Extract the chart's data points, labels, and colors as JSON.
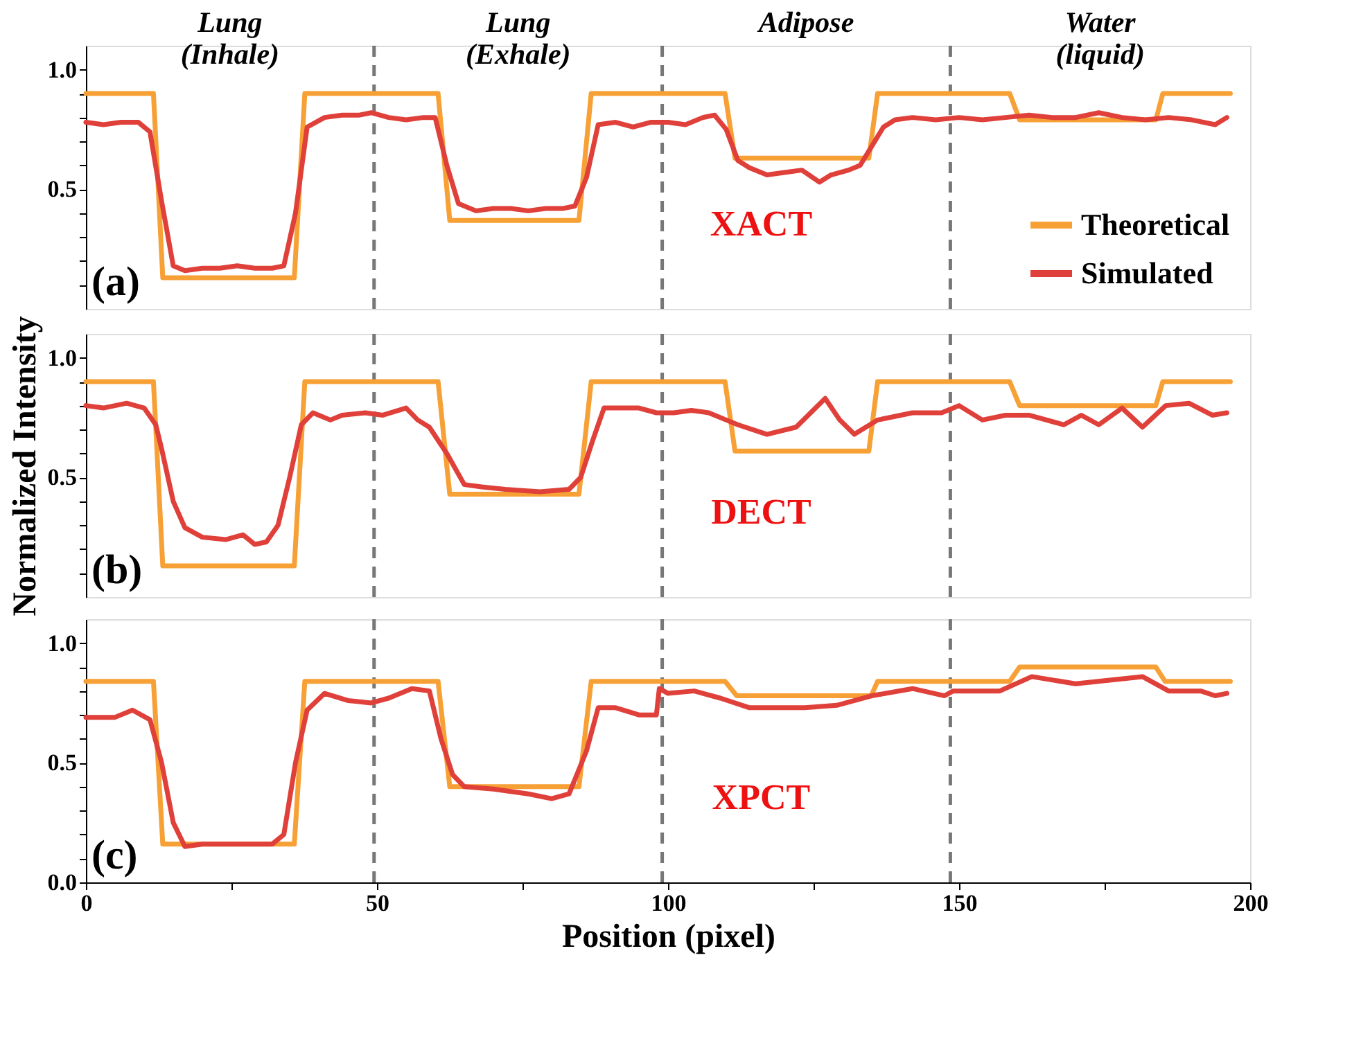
{
  "chart_data": [
    {
      "type": "line",
      "xlim": [
        0,
        200
      ],
      "ylim": [
        0,
        1.1
      ],
      "yticks": [
        {
          "value": 0.1,
          "label": null
        },
        {
          "value": 0.2,
          "label": null
        },
        {
          "value": 0.3,
          "label": null
        },
        {
          "value": 0.4,
          "label": null
        },
        {
          "value": 0.5,
          "label": "0.5"
        },
        {
          "value": 0.6,
          "label": null
        },
        {
          "value": 0.7,
          "label": null
        },
        {
          "value": 0.8,
          "label": null
        },
        {
          "value": 0.9,
          "label": null
        },
        {
          "value": 1,
          "label": "1.0"
        }
      ],
      "tick_labels": "y",
      "grid": false,
      "legend": "bottom right",
      "marker": "none",
      "line_style": "solid",
      "annotations": [
        "(a)",
        "XACT",
        "Lung\n(Inhale)",
        "Lung\n(Exhale)",
        "Adipose",
        "Water\n(liquid)"
      ],
      "ref_lines": [
        {
          "axis": "x",
          "value": 49.5,
          "color": "#777777",
          "line_style": "dashed"
        },
        {
          "axis": "x",
          "value": 99,
          "color": "#777777",
          "line_style": "dashed"
        },
        {
          "axis": "x",
          "value": 148.5,
          "color": "#777777",
          "line_style": "dashed"
        }
      ],
      "series": [
        {
          "name": "Theoretical",
          "color": "#f7a035",
          "x": [
            0,
            11.6,
            13.2,
            35.8,
            37.6,
            60.5,
            62.5,
            84.7,
            86.8,
            109.8,
            111.5,
            134.5,
            136,
            158.7,
            160.4,
            183.8,
            185,
            196.6
          ],
          "values": [
            0.9,
            0.9,
            0.13,
            0.13,
            0.9,
            0.9,
            0.37,
            0.37,
            0.9,
            0.9,
            0.63,
            0.63,
            0.9,
            0.9,
            0.79,
            0.79,
            0.9,
            0.9
          ]
        },
        {
          "name": "Simulated",
          "color": "#e0403a",
          "x": [
            0,
            3,
            6,
            9,
            11,
            13,
            15,
            17,
            20,
            23,
            26,
            29,
            32,
            34,
            36,
            38,
            41,
            44,
            47,
            49,
            52,
            55,
            58,
            60,
            62,
            64,
            67,
            70,
            73,
            76,
            79,
            82,
            84,
            86,
            88,
            91,
            94,
            97,
            100,
            103,
            106,
            108,
            110,
            112,
            114,
            117,
            120,
            123,
            126,
            128,
            131,
            133,
            135,
            137,
            139,
            142,
            146,
            150,
            154,
            158,
            162,
            166,
            170,
            174,
            178,
            182,
            186,
            190,
            194,
            196
          ],
          "values": [
            0.78,
            0.77,
            0.78,
            0.78,
            0.74,
            0.45,
            0.18,
            0.16,
            0.17,
            0.17,
            0.18,
            0.17,
            0.17,
            0.18,
            0.4,
            0.76,
            0.8,
            0.81,
            0.81,
            0.82,
            0.8,
            0.79,
            0.8,
            0.8,
            0.6,
            0.44,
            0.41,
            0.42,
            0.42,
            0.41,
            0.42,
            0.42,
            0.43,
            0.55,
            0.77,
            0.78,
            0.76,
            0.78,
            0.78,
            0.77,
            0.8,
            0.81,
            0.75,
            0.62,
            0.59,
            0.56,
            0.57,
            0.58,
            0.53,
            0.56,
            0.58,
            0.6,
            0.68,
            0.76,
            0.79,
            0.8,
            0.79,
            0.8,
            0.79,
            0.8,
            0.81,
            0.8,
            0.8,
            0.82,
            0.8,
            0.79,
            0.8,
            0.79,
            0.77,
            0.8
          ]
        }
      ]
    },
    {
      "type": "line",
      "xlim": [
        0,
        200
      ],
      "ylim": [
        0,
        1.1
      ],
      "yticks": [
        {
          "value": 0.1,
          "label": null
        },
        {
          "value": 0.2,
          "label": null
        },
        {
          "value": 0.3,
          "label": null
        },
        {
          "value": 0.4,
          "label": null
        },
        {
          "value": 0.5,
          "label": "0.5"
        },
        {
          "value": 0.6,
          "label": null
        },
        {
          "value": 0.7,
          "label": null
        },
        {
          "value": 0.8,
          "label": null
        },
        {
          "value": 0.9,
          "label": null
        },
        {
          "value": 1,
          "label": "1.0"
        }
      ],
      "tick_labels": "y",
      "grid": false,
      "marker": "none",
      "line_style": "solid",
      "ylabel": "Normalized Intensity",
      "annotations": [
        "(b)",
        "DECT"
      ],
      "ref_lines": [
        {
          "axis": "x",
          "value": 49.5,
          "color": "#777777",
          "line_style": "dashed"
        },
        {
          "axis": "x",
          "value": 99,
          "color": "#777777",
          "line_style": "dashed"
        },
        {
          "axis": "x",
          "value": 148.5,
          "color": "#777777",
          "line_style": "dashed"
        }
      ],
      "series": [
        {
          "color": "#f7a035",
          "x": [
            0,
            11.6,
            13.2,
            35.8,
            37.6,
            60.5,
            62.5,
            84.7,
            86.8,
            109.8,
            111.5,
            134.5,
            136,
            158.7,
            160.4,
            183.8,
            185,
            196.6
          ],
          "values": [
            0.9,
            0.9,
            0.13,
            0.13,
            0.9,
            0.9,
            0.43,
            0.43,
            0.9,
            0.9,
            0.61,
            0.61,
            0.9,
            0.9,
            0.8,
            0.8,
            0.9,
            0.9
          ]
        },
        {
          "color": "#e0403a",
          "x": [
            0,
            3,
            7,
            10,
            12,
            13,
            15,
            17,
            20,
            24,
            27,
            29,
            31,
            33,
            35,
            37,
            39,
            42,
            44,
            48,
            51,
            55,
            57,
            59,
            62,
            65,
            68,
            72,
            78,
            83,
            85,
            87,
            89,
            95,
            98,
            101,
            104,
            107,
            110,
            112,
            117,
            122,
            127,
            129.5,
            132,
            136,
            142,
            147,
            150,
            154,
            158,
            162,
            168,
            171,
            174,
            178,
            181.5,
            185.5,
            189.5,
            193.5,
            196
          ],
          "values": [
            0.8,
            0.79,
            0.81,
            0.79,
            0.72,
            0.62,
            0.4,
            0.29,
            0.25,
            0.24,
            0.26,
            0.22,
            0.23,
            0.3,
            0.5,
            0.72,
            0.77,
            0.74,
            0.76,
            0.77,
            0.76,
            0.79,
            0.74,
            0.71,
            0.6,
            0.47,
            0.46,
            0.45,
            0.44,
            0.45,
            0.5,
            0.65,
            0.79,
            0.79,
            0.77,
            0.77,
            0.78,
            0.77,
            0.74,
            0.72,
            0.68,
            0.71,
            0.83,
            0.74,
            0.68,
            0.74,
            0.77,
            0.77,
            0.8,
            0.74,
            0.76,
            0.76,
            0.72,
            0.76,
            0.72,
            0.79,
            0.71,
            0.8,
            0.81,
            0.76,
            0.77
          ]
        }
      ]
    },
    {
      "type": "line",
      "xlim": [
        0,
        200
      ],
      "ylim": [
        0,
        1.1
      ],
      "xlabel": "Position (pixel)",
      "xticks": [
        0,
        {
          "value": 25,
          "label": null
        },
        50,
        {
          "value": 75,
          "label": null
        },
        100,
        {
          "value": 125,
          "label": null
        },
        150,
        {
          "value": 175,
          "label": null
        },
        200
      ],
      "yticks": [
        {
          "value": 0,
          "label": "0.0"
        },
        {
          "value": 0.1,
          "label": null
        },
        {
          "value": 0.2,
          "label": null
        },
        {
          "value": 0.3,
          "label": null
        },
        {
          "value": 0.4,
          "label": null
        },
        {
          "value": 0.5,
          "label": "0.5"
        },
        {
          "value": 0.6,
          "label": null
        },
        {
          "value": 0.7,
          "label": null
        },
        {
          "value": 0.8,
          "label": null
        },
        {
          "value": 0.9,
          "label": null
        },
        {
          "value": 1,
          "label": "1.0"
        }
      ],
      "grid": false,
      "marker": "none",
      "line_style": "solid",
      "annotations": [
        "(c)",
        "XPCT"
      ],
      "ref_lines": [
        {
          "axis": "x",
          "value": 49.5,
          "color": "#777777",
          "line_style": "dashed"
        },
        {
          "axis": "x",
          "value": 99,
          "color": "#777777",
          "line_style": "dashed"
        },
        {
          "axis": "x",
          "value": 148.5,
          "color": "#777777",
          "line_style": "dashed"
        }
      ],
      "series": [
        {
          "color": "#f7a035",
          "x": [
            0,
            11.6,
            13.2,
            35.8,
            37.6,
            60.5,
            62.5,
            84.7,
            86.8,
            109.8,
            111.8,
            134.9,
            136,
            158.7,
            160.4,
            183.8,
            185.4,
            196.6
          ],
          "values": [
            0.84,
            0.84,
            0.16,
            0.16,
            0.84,
            0.84,
            0.4,
            0.4,
            0.84,
            0.84,
            0.78,
            0.78,
            0.84,
            0.84,
            0.9,
            0.9,
            0.84,
            0.84
          ]
        },
        {
          "color": "#e0403a",
          "x": [
            0,
            5,
            8,
            11,
            13,
            15,
            17,
            20,
            25,
            32,
            34,
            36,
            38,
            41,
            45,
            49,
            52,
            56,
            59,
            61,
            63,
            65,
            70,
            76,
            80,
            83,
            86,
            88,
            91,
            95,
            98,
            98.5,
            100,
            104.5,
            109,
            114,
            123.5,
            129,
            135,
            142,
            147.5,
            149,
            157,
            162.5,
            170,
            181.5,
            186,
            191.5,
            194,
            196
          ],
          "values": [
            0.69,
            0.69,
            0.72,
            0.68,
            0.5,
            0.25,
            0.15,
            0.16,
            0.16,
            0.16,
            0.2,
            0.5,
            0.72,
            0.79,
            0.76,
            0.75,
            0.77,
            0.81,
            0.8,
            0.6,
            0.45,
            0.4,
            0.39,
            0.37,
            0.35,
            0.37,
            0.55,
            0.73,
            0.73,
            0.7,
            0.7,
            0.81,
            0.79,
            0.8,
            0.77,
            0.73,
            0.73,
            0.74,
            0.78,
            0.81,
            0.78,
            0.8,
            0.8,
            0.86,
            0.83,
            0.86,
            0.8,
            0.8,
            0.78,
            0.79
          ]
        }
      ]
    }
  ]
}
